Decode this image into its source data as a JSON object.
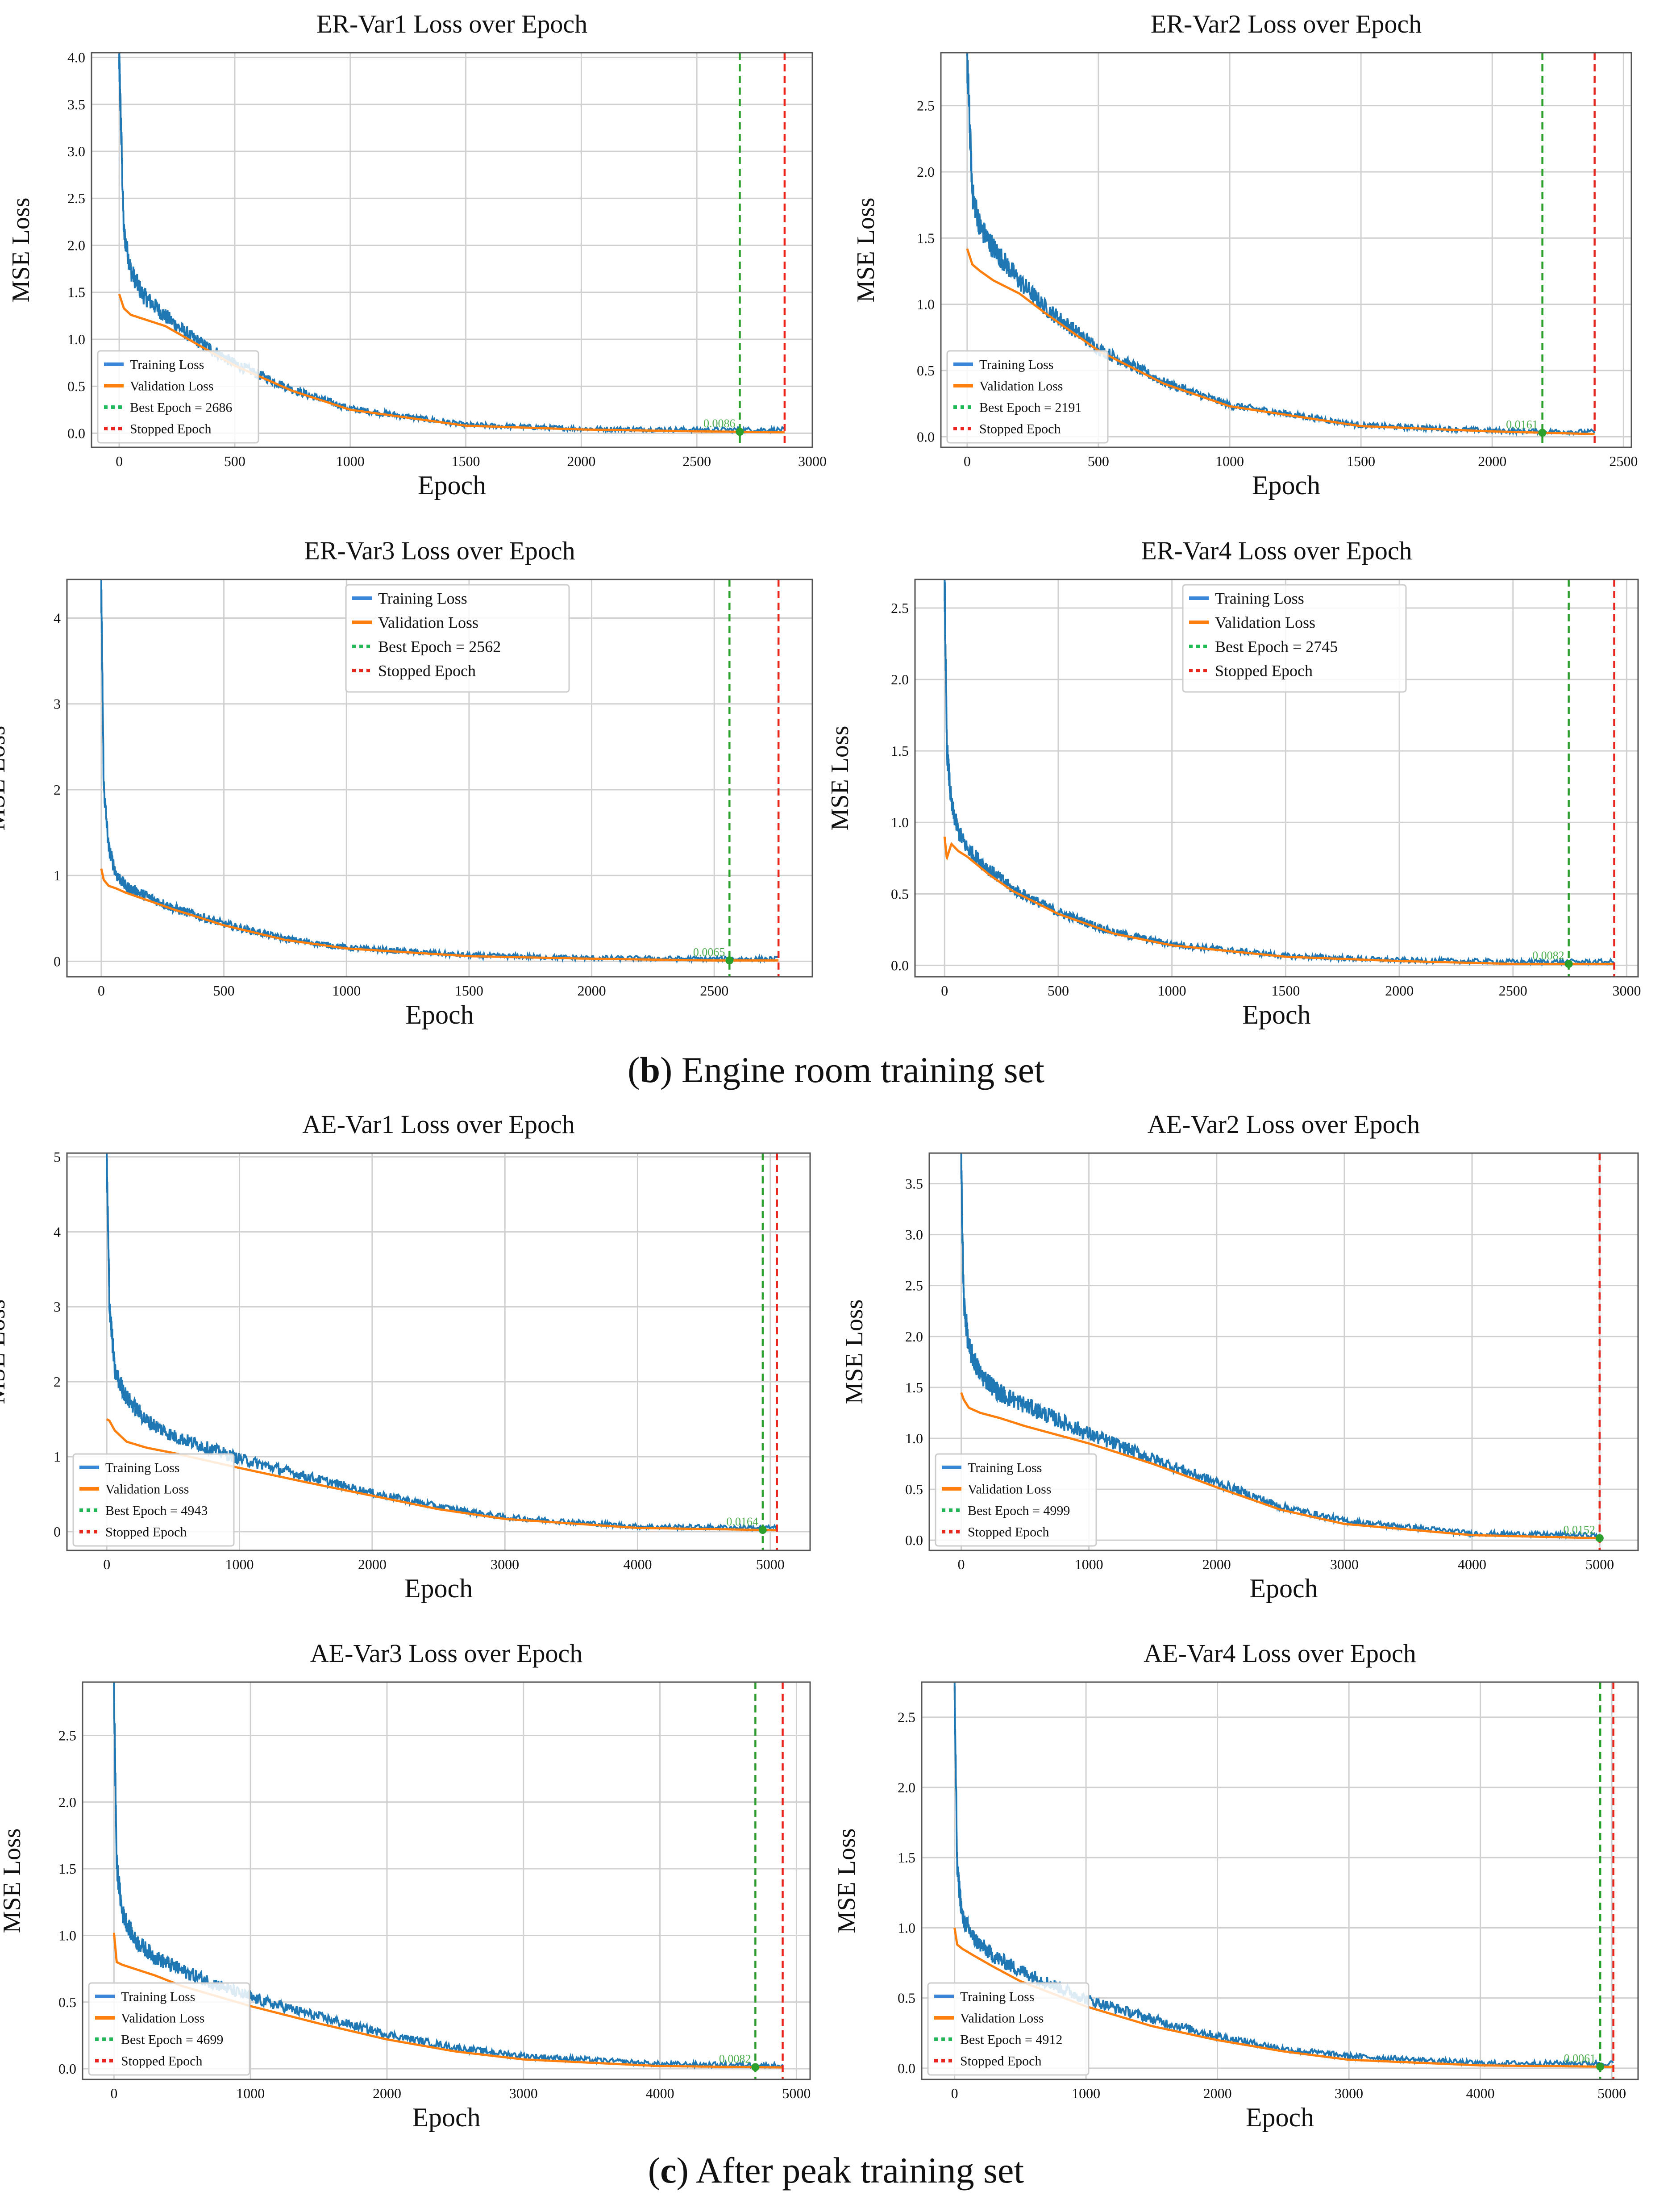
{
  "figure": {
    "caption_b": {
      "open": "(",
      "letter": "b",
      "text": ") Engine room training set"
    },
    "caption_c": {
      "open": "(",
      "letter": "c",
      "text": ") After peak training set"
    }
  },
  "colors": {
    "training": "#1f77b4",
    "training_legend": "#3a86d8",
    "validation": "#ff7f0e",
    "best": "#2ca02c",
    "stopped": "#e8261e",
    "grid": "#d0d0d0"
  },
  "chart_data": [
    {
      "type": "line",
      "title": "ER-Var1 Loss over Epoch",
      "xlabel": "Epoch",
      "ylabel": "MSE Loss",
      "xlim": [
        -120,
        3000
      ],
      "ylim": [
        -0.15,
        4.05
      ],
      "xticks": [
        0,
        500,
        1000,
        1500,
        2000,
        2500,
        3000
      ],
      "yticks": [
        0.0,
        0.5,
        1.0,
        1.5,
        2.0,
        2.5,
        3.0,
        3.5,
        4.0
      ],
      "ytick_labels": [
        "0.0",
        "0.5",
        "1.0",
        "1.5",
        "2.0",
        "2.5",
        "3.0",
        "3.5",
        "4.0"
      ],
      "grid": true,
      "legend": "lower-left",
      "series": [
        {
          "name": "Training Loss",
          "x": [
            0,
            20,
            50,
            100,
            200,
            300,
            500,
            750,
            1000,
            1500,
            2000,
            2500,
            2880
          ],
          "y": [
            3.9,
            2.1,
            1.7,
            1.45,
            1.22,
            1.02,
            0.72,
            0.45,
            0.25,
            0.08,
            0.04,
            0.03,
            0.03
          ]
        },
        {
          "name": "Validation Loss",
          "x": [
            0,
            20,
            50,
            100,
            200,
            300,
            500,
            750,
            1000,
            1500,
            2000,
            2500,
            2880
          ],
          "y": [
            1.48,
            1.33,
            1.26,
            1.22,
            1.14,
            1.0,
            0.72,
            0.45,
            0.25,
            0.08,
            0.04,
            0.02,
            0.01
          ]
        }
      ],
      "best_epoch": 2686,
      "stopped_epoch": 2880,
      "best_value_label": "0.0086",
      "legend_labels": [
        "Training Loss",
        "Validation Loss",
        "Best Epoch = 2686",
        "Stopped Epoch"
      ]
    },
    {
      "type": "line",
      "title": "ER-Var2 Loss over Epoch",
      "xlabel": "Epoch",
      "ylabel": "MSE Loss",
      "xlim": [
        -100,
        2530
      ],
      "ylim": [
        -0.08,
        2.9
      ],
      "xticks": [
        0,
        500,
        1000,
        1500,
        2000,
        2500
      ],
      "yticks": [
        0.0,
        0.5,
        1.0,
        1.5,
        2.0,
        2.5
      ],
      "ytick_labels": [
        "0.0",
        "0.5",
        "1.0",
        "1.5",
        "2.0",
        "2.5"
      ],
      "grid": true,
      "legend": "lower-left",
      "series": [
        {
          "name": "Training Loss",
          "x": [
            0,
            20,
            50,
            100,
            200,
            300,
            500,
            750,
            1000,
            1500,
            2000,
            2390
          ],
          "y": [
            2.8,
            1.8,
            1.55,
            1.4,
            1.15,
            0.95,
            0.65,
            0.4,
            0.23,
            0.08,
            0.04,
            0.03
          ]
        },
        {
          "name": "Validation Loss",
          "x": [
            0,
            20,
            50,
            100,
            200,
            300,
            500,
            750,
            1000,
            1500,
            2000,
            2390
          ],
          "y": [
            1.42,
            1.3,
            1.25,
            1.18,
            1.08,
            0.93,
            0.65,
            0.4,
            0.23,
            0.08,
            0.04,
            0.02
          ]
        }
      ],
      "best_epoch": 2191,
      "stopped_epoch": 2390,
      "best_value_label": "0.0161",
      "legend_labels": [
        "Training Loss",
        "Validation Loss",
        "Best Epoch = 2191",
        "Stopped Epoch"
      ]
    },
    {
      "type": "line",
      "title": "ER-Var3 Loss over Epoch",
      "xlabel": "Epoch",
      "ylabel": "MSE Loss",
      "xlim": [
        -140,
        2900
      ],
      "ylim": [
        -0.18,
        4.45
      ],
      "xticks": [
        0,
        500,
        1000,
        1500,
        2000,
        2500
      ],
      "yticks": [
        0,
        1,
        2,
        3,
        4
      ],
      "ytick_labels": [
        "0",
        "1",
        "2",
        "3",
        "4"
      ],
      "grid": true,
      "legend": "upper-center",
      "series": [
        {
          "name": "Training Loss",
          "x": [
            0,
            10,
            30,
            60,
            100,
            200,
            300,
            500,
            750,
            1000,
            1500,
            2000,
            2500,
            2762
          ],
          "y": [
            4.25,
            2.0,
            1.3,
            1.0,
            0.85,
            0.72,
            0.6,
            0.42,
            0.25,
            0.15,
            0.06,
            0.03,
            0.02,
            0.02
          ]
        },
        {
          "name": "Validation Loss",
          "x": [
            0,
            10,
            30,
            60,
            100,
            200,
            300,
            500,
            750,
            1000,
            1500,
            2000,
            2500,
            2762
          ],
          "y": [
            1.08,
            0.95,
            0.88,
            0.85,
            0.8,
            0.7,
            0.6,
            0.42,
            0.25,
            0.15,
            0.06,
            0.03,
            0.01,
            0.01
          ]
        }
      ],
      "best_epoch": 2562,
      "stopped_epoch": 2762,
      "best_value_label": "0.0065",
      "legend_labels": [
        "Training Loss",
        "Validation Loss",
        "Best Epoch = 2562",
        "Stopped Epoch"
      ]
    },
    {
      "type": "line",
      "title": "ER-Var4 Loss over Epoch",
      "xlabel": "Epoch",
      "ylabel": "MSE Loss",
      "xlim": [
        -130,
        3050
      ],
      "ylim": [
        -0.08,
        2.7
      ],
      "xticks": [
        0,
        500,
        1000,
        1500,
        2000,
        2500,
        3000
      ],
      "yticks": [
        0.0,
        0.5,
        1.0,
        1.5,
        2.0,
        2.5
      ],
      "ytick_labels": [
        "0.0",
        "0.5",
        "1.0",
        "1.5",
        "2.0",
        "2.5"
      ],
      "grid": true,
      "legend": "upper-center",
      "series": [
        {
          "name": "Training Loss",
          "x": [
            0,
            10,
            30,
            60,
            100,
            200,
            300,
            500,
            750,
            1000,
            1500,
            2000,
            2500,
            2945
          ],
          "y": [
            2.65,
            1.5,
            1.1,
            0.92,
            0.8,
            0.65,
            0.52,
            0.36,
            0.22,
            0.14,
            0.06,
            0.03,
            0.02,
            0.02
          ]
        },
        {
          "name": "Validation Loss",
          "x": [
            0,
            10,
            30,
            60,
            100,
            200,
            300,
            500,
            750,
            1000,
            1500,
            2000,
            2500,
            2945
          ],
          "y": [
            0.9,
            0.75,
            0.85,
            0.8,
            0.76,
            0.63,
            0.52,
            0.36,
            0.22,
            0.14,
            0.06,
            0.03,
            0.01,
            0.01
          ]
        }
      ],
      "best_epoch": 2745,
      "stopped_epoch": 2945,
      "best_value_label": "0.0082",
      "legend_labels": [
        "Training Loss",
        "Validation Loss",
        "Best Epoch = 2745",
        "Stopped Epoch"
      ]
    },
    {
      "type": "line",
      "title": "AE-Var1 Loss over Epoch",
      "xlabel": "Epoch",
      "ylabel": "MSE Loss",
      "xlim": [
        -300,
        5300
      ],
      "ylim": [
        -0.25,
        5.05
      ],
      "xticks": [
        0,
        1000,
        2000,
        3000,
        4000,
        5000
      ],
      "yticks": [
        0,
        1,
        2,
        3,
        4,
        5
      ],
      "ytick_labels": [
        "0",
        "1",
        "2",
        "3",
        "4",
        "5"
      ],
      "grid": true,
      "legend": "lower-left",
      "series": [
        {
          "name": "Training Loss",
          "x": [
            0,
            20,
            60,
            150,
            300,
            500,
            1000,
            1500,
            2000,
            2500,
            3000,
            4000,
            5050
          ],
          "y": [
            4.8,
            3.0,
            2.1,
            1.75,
            1.45,
            1.25,
            0.95,
            0.72,
            0.5,
            0.32,
            0.18,
            0.06,
            0.04
          ]
        },
        {
          "name": "Validation Loss",
          "x": [
            0,
            20,
            60,
            150,
            300,
            500,
            1000,
            1500,
            2000,
            2500,
            3000,
            4000,
            5050
          ],
          "y": [
            1.5,
            1.48,
            1.35,
            1.2,
            1.12,
            1.05,
            0.85,
            0.66,
            0.48,
            0.3,
            0.17,
            0.05,
            0.02
          ]
        }
      ],
      "best_epoch": 4943,
      "stopped_epoch": 5050,
      "best_value_label": "0.0164",
      "legend_labels": [
        "Training Loss",
        "Validation Loss",
        "Best Epoch = 4943",
        "Stopped Epoch"
      ]
    },
    {
      "type": "line",
      "title": "AE-Var2 Loss over Epoch",
      "xlabel": "Epoch",
      "ylabel": "MSE Loss",
      "xlim": [
        -250,
        5300
      ],
      "ylim": [
        -0.1,
        3.8
      ],
      "xticks": [
        0,
        1000,
        2000,
        3000,
        4000,
        5000
      ],
      "yticks": [
        0.0,
        0.5,
        1.0,
        1.5,
        2.0,
        2.5,
        3.0,
        3.5
      ],
      "ytick_labels": [
        "0.0",
        "0.5",
        "1.0",
        "1.5",
        "2.0",
        "2.5",
        "3.0",
        "3.5"
      ],
      "grid": true,
      "legend": "lower-left",
      "series": [
        {
          "name": "Training Loss",
          "x": [
            0,
            20,
            60,
            150,
            300,
            500,
            1000,
            1500,
            2000,
            2500,
            3000,
            4000,
            5000
          ],
          "y": [
            3.6,
            2.3,
            1.85,
            1.6,
            1.42,
            1.3,
            1.02,
            0.78,
            0.55,
            0.32,
            0.18,
            0.06,
            0.04
          ]
        },
        {
          "name": "Validation Loss",
          "x": [
            0,
            20,
            60,
            150,
            300,
            500,
            1000,
            1500,
            2000,
            2500,
            3000,
            4000,
            5000
          ],
          "y": [
            1.45,
            1.38,
            1.3,
            1.25,
            1.2,
            1.12,
            0.95,
            0.75,
            0.52,
            0.3,
            0.16,
            0.05,
            0.02
          ]
        }
      ],
      "best_epoch": 4999,
      "stopped_epoch": 4999,
      "best_value_label": "0.0152",
      "legend_labels": [
        "Training Loss",
        "Validation Loss",
        "Best Epoch = 4999",
        "Stopped Epoch"
      ]
    },
    {
      "type": "line",
      "title": "AE-Var3 Loss over Epoch",
      "xlabel": "Epoch",
      "ylabel": "MSE Loss",
      "xlim": [
        -230,
        5100
      ],
      "ylim": [
        -0.08,
        2.9
      ],
      "xticks": [
        0,
        1000,
        2000,
        3000,
        4000,
        5000
      ],
      "yticks": [
        0.0,
        0.5,
        1.0,
        1.5,
        2.0,
        2.5
      ],
      "ytick_labels": [
        "0.0",
        "0.5",
        "1.0",
        "1.5",
        "2.0",
        "2.5"
      ],
      "grid": true,
      "legend": "lower-left",
      "series": [
        {
          "name": "Training Loss",
          "x": [
            0,
            20,
            60,
            150,
            300,
            500,
            1000,
            1500,
            2000,
            2500,
            3000,
            4000,
            4899
          ],
          "y": [
            2.8,
            1.5,
            1.15,
            0.95,
            0.82,
            0.72,
            0.52,
            0.38,
            0.25,
            0.15,
            0.09,
            0.03,
            0.02
          ]
        },
        {
          "name": "Validation Loss",
          "x": [
            0,
            20,
            60,
            150,
            300,
            500,
            1000,
            1500,
            2000,
            2500,
            3000,
            4000,
            4899
          ],
          "y": [
            1.02,
            0.8,
            0.78,
            0.75,
            0.7,
            0.62,
            0.47,
            0.34,
            0.22,
            0.13,
            0.07,
            0.02,
            0.01
          ]
        }
      ],
      "best_epoch": 4699,
      "stopped_epoch": 4899,
      "best_value_label": "0.0082",
      "legend_labels": [
        "Training Loss",
        "Validation Loss",
        "Best Epoch = 4699",
        "Stopped Epoch"
      ]
    },
    {
      "type": "line",
      "title": "AE-Var4 Loss over Epoch",
      "xlabel": "Epoch",
      "ylabel": "MSE Loss",
      "xlim": [
        -250,
        5200
      ],
      "ylim": [
        -0.08,
        2.75
      ],
      "xticks": [
        0,
        1000,
        2000,
        3000,
        4000,
        5000
      ],
      "yticks": [
        0.0,
        0.5,
        1.0,
        1.5,
        2.0,
        2.5
      ],
      "ytick_labels": [
        "0.0",
        "0.5",
        "1.0",
        "1.5",
        "2.0",
        "2.5"
      ],
      "grid": true,
      "legend": "lower-left",
      "series": [
        {
          "name": "Training Loss",
          "x": [
            0,
            20,
            60,
            150,
            300,
            500,
            1000,
            1500,
            2000,
            2500,
            3000,
            4000,
            5012
          ],
          "y": [
            2.65,
            1.4,
            1.05,
            0.9,
            0.78,
            0.68,
            0.48,
            0.34,
            0.22,
            0.13,
            0.08,
            0.03,
            0.03
          ]
        },
        {
          "name": "Validation Loss",
          "x": [
            0,
            20,
            60,
            150,
            300,
            500,
            1000,
            1500,
            2000,
            2500,
            3000,
            4000,
            5012
          ],
          "y": [
            1.0,
            0.88,
            0.85,
            0.8,
            0.72,
            0.62,
            0.44,
            0.3,
            0.2,
            0.12,
            0.06,
            0.02,
            0.01
          ]
        }
      ],
      "best_epoch": 4912,
      "stopped_epoch": 5012,
      "best_value_label": "0.0061",
      "legend_labels": [
        "Training Loss",
        "Validation Loss",
        "Best Epoch = 4912",
        "Stopped Epoch"
      ]
    }
  ]
}
